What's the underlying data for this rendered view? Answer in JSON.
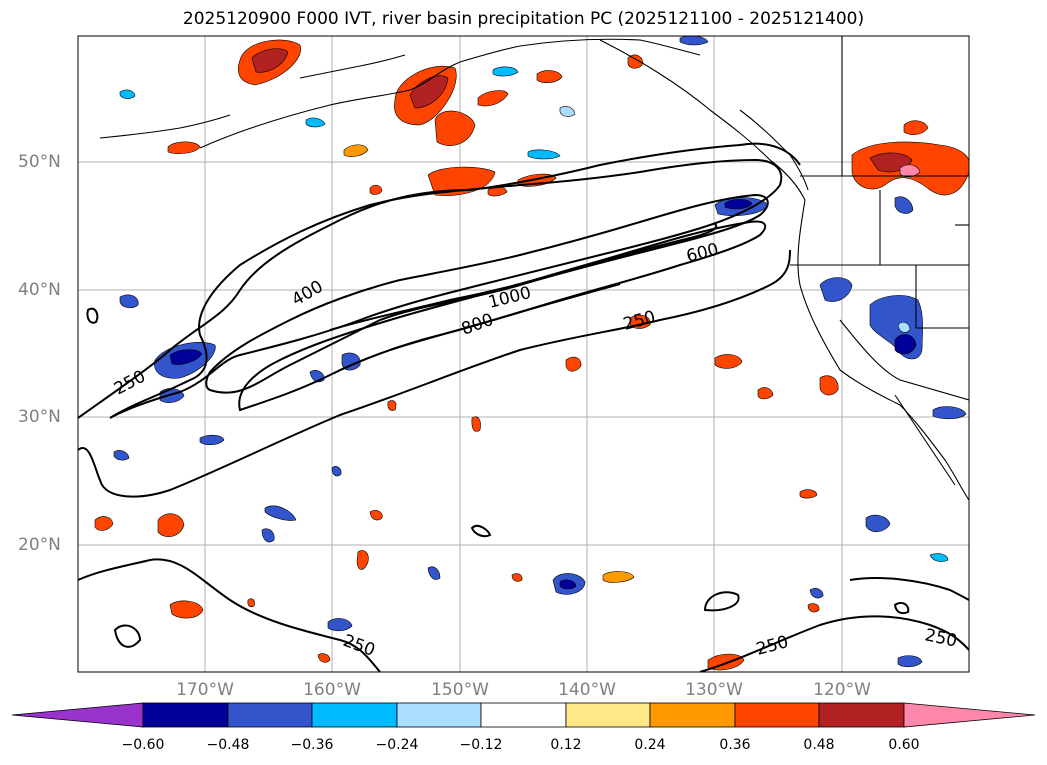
{
  "title": "2025120900 F000 IVT, river basin precipitation PC (2025121100 - 2025121400)",
  "lat_labels": [
    "50°N",
    "40°N",
    "30°N",
    "20°N"
  ],
  "lon_labels": [
    "170°W",
    "160°W",
    "150°W",
    "140°W",
    "130°W",
    "120°W"
  ],
  "ivt_contour_labels": [
    "250",
    "400",
    "600",
    "800",
    "1000",
    "250",
    "250",
    "250",
    "250"
  ],
  "colorbar": {
    "ticks": [
      "−0.60",
      "−0.48",
      "−0.36",
      "−0.24",
      "−0.12",
      "0.12",
      "0.24",
      "0.36",
      "0.48",
      "0.60"
    ],
    "colors": [
      "#9933cc",
      "#000099",
      "#3355cc",
      "#00bbff",
      "#aaddff",
      "#ffffff",
      "#ffe88a",
      "#ff9900",
      "#ff4400",
      "#b22222",
      "#ff88aa"
    ],
    "extend": "both"
  },
  "colors": {
    "positive_low": "#ffe88a",
    "positive_mid": "#ff9900",
    "positive_high": "#ff4400",
    "positive_vhigh": "#b22222",
    "positive_max": "#ff88aa",
    "negative_low": "#aaddff",
    "negative_mid": "#00bbff",
    "negative_high": "#3355cc",
    "negative_vhigh": "#000099",
    "grid": "#b0b0b0",
    "contour": "#000000"
  }
}
